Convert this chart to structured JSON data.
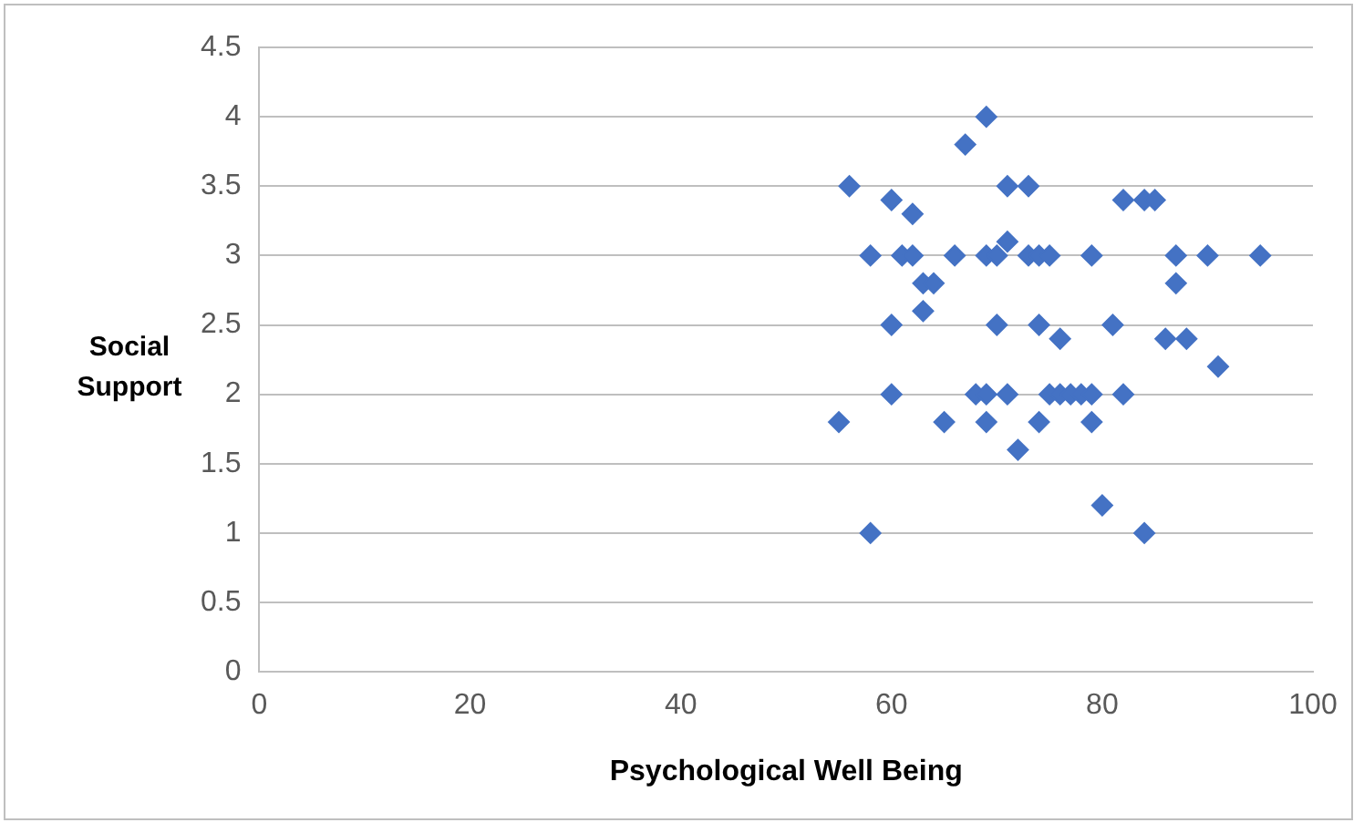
{
  "chart_data": {
    "type": "scatter",
    "xlabel": "Psychological Well Being",
    "ylabel": "Social Support",
    "series": [
      {
        "color": "#4472c4",
        "x": [
          56,
          58,
          60,
          62,
          61,
          62,
          63,
          64,
          63,
          66,
          60,
          60,
          55,
          58,
          65,
          67,
          69,
          71,
          73,
          71,
          69,
          70,
          73,
          74,
          75,
          79,
          70,
          74,
          76,
          68,
          69,
          71,
          75,
          76,
          77,
          78,
          79,
          82,
          69,
          74,
          79,
          72,
          80,
          84,
          81,
          82,
          84,
          85,
          87,
          90,
          95,
          87,
          86,
          88,
          91
        ],
        "values": [
          3.5,
          3.0,
          3.4,
          3.3,
          3.0,
          3.0,
          2.8,
          2.8,
          2.6,
          3.0,
          2.5,
          2.0,
          1.8,
          1.0,
          1.8,
          3.8,
          4.0,
          3.5,
          3.5,
          3.1,
          3.0,
          3.0,
          3.0,
          3.0,
          3.0,
          3.0,
          2.5,
          2.5,
          2.4,
          2.0,
          2.0,
          2.0,
          2.0,
          2.0,
          2.0,
          2.0,
          2.0,
          2.0,
          1.8,
          1.8,
          1.8,
          1.6,
          1.2,
          1.0,
          2.5,
          3.4,
          3.4,
          3.4,
          3.0,
          3.0,
          3.0,
          2.8,
          2.4,
          2.4,
          2.2
        ]
      }
    ],
    "xlim": [
      0,
      100
    ],
    "xticks": [
      0,
      20,
      40,
      60,
      80,
      100
    ],
    "ylim": [
      0,
      4.5
    ],
    "yticks": [
      0,
      0.5,
      1,
      1.5,
      2,
      2.5,
      3,
      3.5,
      4,
      4.5
    ],
    "grid": "y",
    "marker": "diamond",
    "legend": false
  }
}
